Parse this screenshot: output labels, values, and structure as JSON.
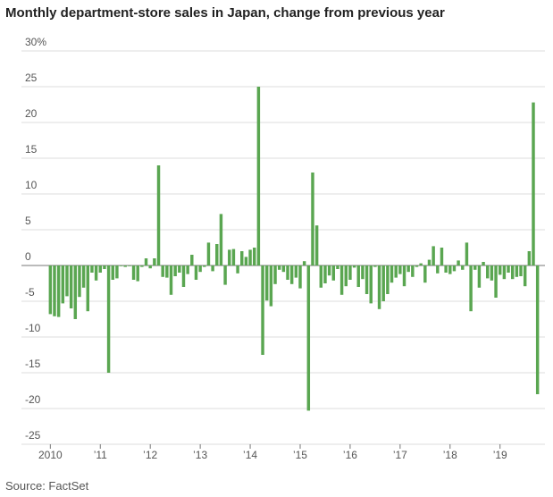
{
  "chart_data": {
    "type": "bar",
    "title": "Monthly department-store sales in Japan, change from previous year",
    "source": "Source: FactSet",
    "categories": [
      "2010",
      null,
      null,
      null,
      null,
      null,
      null,
      null,
      null,
      null,
      null,
      null,
      "’11",
      null,
      null,
      null,
      null,
      null,
      null,
      null,
      null,
      null,
      null,
      null,
      "’12",
      null,
      null,
      null,
      null,
      null,
      null,
      null,
      null,
      null,
      null,
      null,
      "’13",
      null,
      null,
      null,
      null,
      null,
      null,
      null,
      null,
      null,
      null,
      null,
      "’14",
      null,
      null,
      null,
      null,
      null,
      null,
      null,
      null,
      null,
      null,
      null,
      "’15",
      null,
      null,
      null,
      null,
      null,
      null,
      null,
      null,
      null,
      null,
      null,
      "’16",
      null,
      null,
      null,
      null,
      null,
      null,
      null,
      null,
      null,
      null,
      null,
      "’17",
      null,
      null,
      null,
      null,
      null,
      null,
      null,
      null,
      null,
      null,
      null,
      "’18",
      null,
      null,
      null,
      null,
      null,
      null,
      null,
      null,
      null,
      null,
      null,
      "’19",
      null,
      null,
      null,
      null,
      null,
      null,
      null,
      null,
      null
    ],
    "values": [
      -6.8,
      -7.1,
      -7.2,
      -5.3,
      -4.3,
      -6.0,
      -7.5,
      -4.4,
      -3.1,
      -6.4,
      -1.0,
      -2.1,
      -1.0,
      -0.5,
      -15.0,
      -2.0,
      -1.8,
      -0.1,
      -0.2,
      -0.1,
      -2.0,
      -2.2,
      -0.2,
      1.0,
      -0.4,
      1.0,
      14.0,
      -1.6,
      -1.7,
      -4.1,
      -1.5,
      -1.0,
      -3.0,
      -1.2,
      1.5,
      -2.0,
      -0.9,
      -0.2,
      3.2,
      -0.8,
      3.0,
      7.2,
      -2.7,
      2.2,
      2.3,
      -1.1,
      2.0,
      1.2,
      2.2,
      2.5,
      25.0,
      -12.5,
      -4.9,
      -5.7,
      -2.6,
      -0.6,
      -0.9,
      -2.0,
      -2.6,
      -1.7,
      -3.2,
      0.6,
      -20.3,
      13.0,
      5.6,
      -3.1,
      -2.5,
      -1.4,
      -2.1,
      -0.5,
      -4.1,
      -2.9,
      -2.0,
      -0.3,
      -3.0,
      -1.9,
      -4.0,
      -5.3,
      -0.2,
      -6.1,
      -5.0,
      -4.0,
      -2.4,
      -1.7,
      -1.2,
      -2.9,
      -0.9,
      -1.6,
      -0.2,
      0.3,
      -2.4,
      0.8,
      2.7,
      -1.1,
      2.5,
      -1.0,
      -1.2,
      -0.8,
      0.7,
      -0.6,
      3.2,
      -6.4,
      -0.6,
      -3.1,
      0.5,
      -1.8,
      -2.1,
      -4.5,
      -1.3,
      -1.9,
      -1.0,
      -1.9,
      -1.6,
      -1.5,
      -2.9,
      2.0,
      22.8,
      -18.0
    ],
    "color": "#5aa651",
    "ylim": [
      -25,
      30
    ],
    "yticks": [
      -25,
      -20,
      -15,
      -10,
      -5,
      0,
      5,
      10,
      15,
      20,
      25,
      {
        "value": 30,
        "label": "30%"
      }
    ],
    "grid": true
  }
}
